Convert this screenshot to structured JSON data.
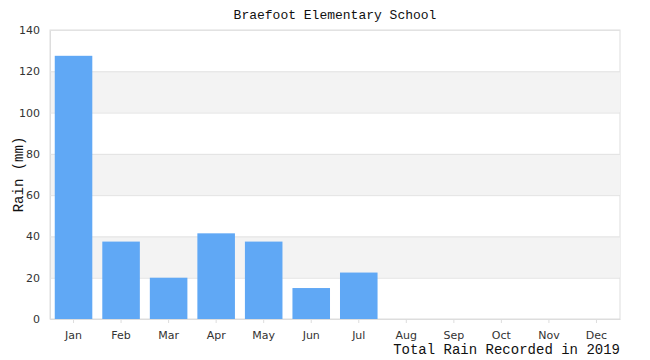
{
  "chart_data": {
    "type": "bar",
    "title": "Braefoot Elementary School",
    "x_label": "Total Rain Recorded in 2019",
    "y_label": "Rain (mm)",
    "categories": [
      "Jan",
      "Feb",
      "Mar",
      "Apr",
      "May",
      "Jun",
      "Jul",
      "Aug",
      "Sep",
      "Oct",
      "Nov",
      "Dec"
    ],
    "values": [
      127.5,
      37.5,
      20,
      41.5,
      37.5,
      15,
      22.5,
      null,
      null,
      null,
      null,
      null
    ],
    "color": "#60a8f5",
    "ylim": [
      0,
      140
    ],
    "yticks": [
      0,
      20,
      40,
      60,
      80,
      100,
      120,
      140
    ],
    "grid": true
  }
}
